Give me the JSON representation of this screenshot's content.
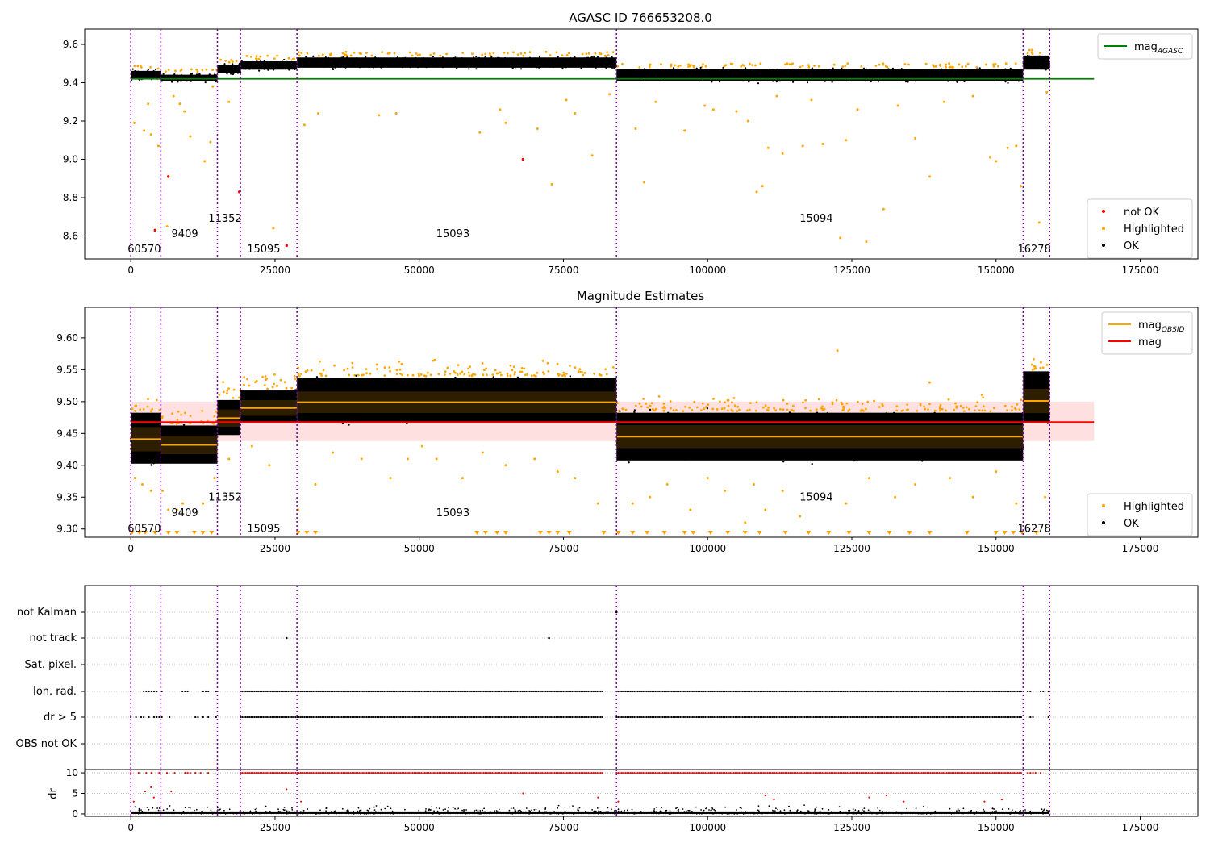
{
  "chart_data": [
    {
      "panel": "top",
      "type": "scatter",
      "title": "AGASC ID 766653208.0",
      "xlim": [
        -8000,
        185000
      ],
      "ylim": [
        8.48,
        9.68
      ],
      "xticks": [
        0,
        25000,
        50000,
        75000,
        100000,
        125000,
        150000,
        175000
      ],
      "yticks": [
        8.6,
        8.8,
        9.0,
        9.2,
        9.4,
        9.6
      ],
      "grid": false,
      "obs_boundaries": [
        0,
        5200,
        15000,
        19000,
        28800,
        84200,
        154700,
        159300
      ],
      "obs_labels": [
        {
          "text": "60570",
          "x": 0,
          "y": 8.53
        },
        {
          "text": "9409",
          "x": 7600,
          "y": 8.61
        },
        {
          "text": "11352",
          "x": 14000,
          "y": 8.69
        },
        {
          "text": "15095",
          "x": 20700,
          "y": 8.53
        },
        {
          "text": "15093",
          "x": 53500,
          "y": 8.61
        },
        {
          "text": "15094",
          "x": 116500,
          "y": 8.69
        },
        {
          "text": "16278",
          "x": 154300,
          "y": 8.53
        }
      ],
      "ok_bands": [
        {
          "x": [
            0,
            5200
          ],
          "y": [
            9.41,
            9.47
          ]
        },
        {
          "x": [
            5200,
            15000
          ],
          "y": [
            9.4,
            9.45
          ]
        },
        {
          "x": [
            15000,
            19000
          ],
          "y": [
            9.44,
            9.5
          ]
        },
        {
          "x": [
            19000,
            28800
          ],
          "y": [
            9.46,
            9.52
          ]
        },
        {
          "x": [
            28800,
            84200
          ],
          "y": [
            9.47,
            9.54
          ]
        },
        {
          "x": [
            84200,
            154700
          ],
          "y": [
            9.4,
            9.48
          ]
        },
        {
          "x": [
            154700,
            159300
          ],
          "y": [
            9.46,
            9.55
          ]
        }
      ],
      "hlines": [
        {
          "name": "mag_{AGASC}",
          "y": 9.42,
          "x": [
            0,
            167000
          ],
          "color": "#008000"
        }
      ],
      "not_ok_points": [
        [
          4200,
          8.63
        ],
        [
          6500,
          8.91
        ],
        [
          18800,
          8.83
        ],
        [
          27000,
          8.55
        ],
        [
          68000,
          9.0
        ]
      ],
      "highlighted_points": [
        [
          600,
          9.19
        ],
        [
          2300,
          9.15
        ],
        [
          3000,
          9.29
        ],
        [
          3500,
          9.13
        ],
        [
          4800,
          9.07
        ],
        [
          6300,
          8.65
        ],
        [
          7400,
          9.33
        ],
        [
          8500,
          9.29
        ],
        [
          9300,
          9.25
        ],
        [
          10300,
          9.12
        ],
        [
          12800,
          8.99
        ],
        [
          13800,
          9.09
        ],
        [
          14200,
          9.38
        ],
        [
          17000,
          9.3
        ],
        [
          24700,
          8.64
        ],
        [
          30100,
          9.18
        ],
        [
          32500,
          9.24
        ],
        [
          43000,
          9.23
        ],
        [
          46000,
          9.24
        ],
        [
          60500,
          9.14
        ],
        [
          64000,
          9.26
        ],
        [
          65000,
          9.19
        ],
        [
          70500,
          9.16
        ],
        [
          73000,
          8.87
        ],
        [
          75500,
          9.31
        ],
        [
          77000,
          9.24
        ],
        [
          80000,
          9.02
        ],
        [
          83000,
          9.34
        ],
        [
          87500,
          9.16
        ],
        [
          89000,
          8.88
        ],
        [
          91000,
          9.3
        ],
        [
          96000,
          9.15
        ],
        [
          99500,
          9.28
        ],
        [
          101000,
          9.26
        ],
        [
          105000,
          9.25
        ],
        [
          107000,
          9.2
        ],
        [
          108500,
          8.83
        ],
        [
          109500,
          8.86
        ],
        [
          110500,
          9.06
        ],
        [
          112000,
          9.33
        ],
        [
          113000,
          9.03
        ],
        [
          116500,
          9.07
        ],
        [
          118000,
          9.31
        ],
        [
          120000,
          9.08
        ],
        [
          123000,
          8.59
        ],
        [
          124000,
          9.1
        ],
        [
          126000,
          9.26
        ],
        [
          127500,
          8.57
        ],
        [
          130500,
          8.74
        ],
        [
          133000,
          9.28
        ],
        [
          136000,
          9.11
        ],
        [
          138500,
          8.91
        ],
        [
          141000,
          9.3
        ],
        [
          146000,
          9.33
        ],
        [
          149000,
          9.01
        ],
        [
          150000,
          8.99
        ],
        [
          152000,
          9.06
        ],
        [
          153500,
          9.07
        ],
        [
          154300,
          8.86
        ],
        [
          157500,
          8.67
        ],
        [
          158800,
          9.35
        ]
      ],
      "legends": [
        {
          "position": "upper-right",
          "entries": [
            {
              "label": "mag",
              "subscript": "AGASC",
              "color": "#008000",
              "marker": "line"
            }
          ]
        },
        {
          "position": "lower-right",
          "entries": [
            {
              "label": "not OK",
              "color": "#ff0000",
              "marker": "dot"
            },
            {
              "label": "Highlighted",
              "color": "#ffa500",
              "marker": "dot"
            },
            {
              "label": "OK",
              "color": "#000000",
              "marker": "dot"
            }
          ]
        }
      ]
    },
    {
      "panel": "middle",
      "type": "scatter",
      "title": "Magnitude Estimates",
      "xlim": [
        -8000,
        185000
      ],
      "ylim": [
        9.287,
        9.648
      ],
      "xticks": [
        0,
        25000,
        50000,
        75000,
        100000,
        125000,
        150000,
        175000
      ],
      "yticks": [
        9.3,
        9.35,
        9.4,
        9.45,
        9.5,
        9.55,
        9.6
      ],
      "grid": false,
      "obs_boundaries": [
        0,
        5200,
        15000,
        19000,
        28800,
        84200,
        154700,
        159300
      ],
      "obs_labels": [
        {
          "text": "60570",
          "x": 0,
          "y": 9.3
        },
        {
          "text": "9409",
          "x": 7600,
          "y": 9.325
        },
        {
          "text": "11352",
          "x": 14000,
          "y": 9.35
        },
        {
          "text": "15095",
          "x": 20700,
          "y": 9.3
        },
        {
          "text": "15093",
          "x": 53500,
          "y": 9.325
        },
        {
          "text": "15094",
          "x": 116500,
          "y": 9.35
        },
        {
          "text": "16278",
          "x": 154300,
          "y": 9.3
        }
      ],
      "mag_line": {
        "name": "mag",
        "y": 9.468,
        "band": [
          9.438,
          9.5
        ],
        "x": [
          0,
          167000
        ],
        "color": "#ff0000"
      },
      "obsid_segments": [
        {
          "x": [
            0,
            5200
          ],
          "mean": 9.441,
          "y": [
            9.4,
            9.485
          ]
        },
        {
          "x": [
            5200,
            15000
          ],
          "mean": 9.432,
          "y": [
            9.4,
            9.465
          ]
        },
        {
          "x": [
            15000,
            19000
          ],
          "mean": 9.474,
          "y": [
            9.445,
            9.505
          ]
        },
        {
          "x": [
            19000,
            28800
          ],
          "mean": 9.49,
          "y": [
            9.465,
            9.52
          ]
        },
        {
          "x": [
            28800,
            84200
          ],
          "mean": 9.499,
          "y": [
            9.465,
            9.54
          ]
        },
        {
          "x": [
            84200,
            154700
          ],
          "mean": 9.445,
          "y": [
            9.405,
            9.485
          ]
        },
        {
          "x": [
            154700,
            159300
          ],
          "mean": 9.501,
          "y": [
            9.465,
            9.55
          ]
        }
      ],
      "highlighted_points": [
        [
          700,
          9.38
        ],
        [
          2000,
          9.37
        ],
        [
          3500,
          9.36
        ],
        [
          5500,
          9.36
        ],
        [
          6500,
          9.33
        ],
        [
          8000,
          9.33
        ],
        [
          9000,
          9.34
        ],
        [
          12500,
          9.34
        ],
        [
          14500,
          9.38
        ],
        [
          17000,
          9.41
        ],
        [
          21000,
          9.43
        ],
        [
          24000,
          9.4
        ],
        [
          29000,
          9.33
        ],
        [
          32000,
          9.37
        ],
        [
          35000,
          9.42
        ],
        [
          40000,
          9.41
        ],
        [
          45000,
          9.38
        ],
        [
          48000,
          9.41
        ],
        [
          50500,
          9.43
        ],
        [
          53000,
          9.41
        ],
        [
          57500,
          9.38
        ],
        [
          61000,
          9.42
        ],
        [
          65000,
          9.4
        ],
        [
          70000,
          9.41
        ],
        [
          74000,
          9.39
        ],
        [
          77000,
          9.38
        ],
        [
          81000,
          9.34
        ],
        [
          87000,
          9.34
        ],
        [
          90000,
          9.35
        ],
        [
          93000,
          9.37
        ],
        [
          97000,
          9.33
        ],
        [
          100000,
          9.38
        ],
        [
          103000,
          9.36
        ],
        [
          106500,
          9.31
        ],
        [
          108000,
          9.37
        ],
        [
          110000,
          9.33
        ],
        [
          113000,
          9.36
        ],
        [
          116000,
          9.32
        ],
        [
          122500,
          9.58
        ],
        [
          124000,
          9.34
        ],
        [
          128000,
          9.38
        ],
        [
          132500,
          9.35
        ],
        [
          136000,
          9.37
        ],
        [
          138500,
          9.53
        ],
        [
          142000,
          9.38
        ],
        [
          146000,
          9.35
        ],
        [
          150000,
          9.39
        ],
        [
          153500,
          9.34
        ],
        [
          158500,
          9.35
        ]
      ],
      "legends": [
        {
          "position": "upper-right",
          "entries": [
            {
              "label": "mag",
              "subscript": "OBSID",
              "color": "#ffa500",
              "marker": "line"
            },
            {
              "label": "mag",
              "color": "#ff0000",
              "marker": "line"
            }
          ]
        },
        {
          "position": "lower-right",
          "entries": [
            {
              "label": "Highlighted",
              "color": "#ffa500",
              "marker": "dot"
            },
            {
              "label": "OK",
              "color": "#000000",
              "marker": "dot"
            }
          ]
        }
      ]
    },
    {
      "panel": "flags",
      "type": "scatter",
      "xlim": [
        -8000,
        185000
      ],
      "categories": [
        "not Kalman",
        "not track",
        "Sat. pixel.",
        "Ion. rad.",
        "dr > 5",
        "OBS not OK"
      ],
      "grid": true,
      "obs_boundaries": [
        0,
        5200,
        15000,
        19000,
        28800,
        84200,
        154700,
        159300
      ],
      "points": [
        {
          "category": "not Kalman",
          "x": [
            84200
          ]
        },
        {
          "category": "not track",
          "x": [
            27000,
            72500
          ]
        },
        {
          "category": "Ion. rad.",
          "ranges": [
            [
              0,
              15000
            ],
            [
              19000,
              82000
            ],
            [
              84200,
              154500
            ],
            [
              155500,
              159300
            ]
          ]
        },
        {
          "category": "dr > 5",
          "ranges": [
            [
              0,
              15000
            ],
            [
              19000,
              82000
            ],
            [
              84200,
              154500
            ],
            [
              155500,
              159300
            ]
          ]
        }
      ]
    },
    {
      "panel": "dr",
      "type": "scatter",
      "ylabel": "dr",
      "xlim": [
        -8000,
        185000
      ],
      "ylim": [
        -0.6,
        10.8
      ],
      "xticks": [
        0,
        25000,
        50000,
        75000,
        100000,
        125000,
        150000,
        175000
      ],
      "yticks": [
        0,
        5,
        10
      ],
      "grid": true,
      "obs_boundaries": [
        0,
        5200,
        15000,
        19000,
        28800,
        84200,
        154700,
        159300
      ],
      "ok_range": [
        0,
        1.0
      ],
      "capped_value": 10,
      "red_points": [
        [
          500,
          3.0
        ],
        [
          2500,
          5.5
        ],
        [
          3500,
          6.5
        ],
        [
          4000,
          4.0
        ],
        [
          7000,
          5.5
        ],
        [
          27000,
          6.0
        ],
        [
          29500,
          3.0
        ],
        [
          68000,
          5.0
        ],
        [
          81000,
          4.0
        ],
        [
          84500,
          3.0
        ],
        [
          110000,
          4.5
        ],
        [
          111500,
          3.5
        ],
        [
          128000,
          4.0
        ],
        [
          131000,
          4.5
        ],
        [
          134000,
          3.0
        ],
        [
          148000,
          3.0
        ],
        [
          151000,
          3.5
        ]
      ]
    }
  ]
}
